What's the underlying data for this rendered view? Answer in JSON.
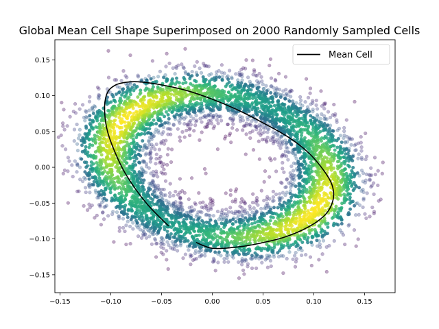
{
  "chart_data": {
    "type": "scatter",
    "title": "Global Mean Cell Shape Superimposed on 2000 Randomly Sampled Cells",
    "xlabel": "",
    "ylabel": "",
    "xlim": [
      -0.155,
      0.18
    ],
    "ylim": [
      -0.175,
      0.178
    ],
    "xticks": [
      -0.15,
      -0.1,
      -0.05,
      0.0,
      0.05,
      0.1,
      0.15
    ],
    "xtick_labels": [
      "−0.15",
      "−0.10",
      "−0.05",
      "0.00",
      "0.05",
      "0.10",
      "0.15"
    ],
    "yticks": [
      -0.15,
      -0.1,
      -0.05,
      0.0,
      0.05,
      0.1,
      0.15
    ],
    "ytick_labels": [
      "−0.15",
      "−0.10",
      "−0.05",
      "0.00",
      "0.05",
      "0.10",
      "0.15"
    ],
    "grid": false,
    "legend": {
      "position": "upper-right",
      "entries": [
        {
          "label": "Mean Cell",
          "color": "#000000"
        }
      ]
    },
    "series": [
      {
        "name": "Sampled Cells",
        "kind": "scatter-density",
        "colormap": "viridis",
        "point_alpha": 0.25,
        "description_points_per_cell": 100,
        "ring_center": [
          0.007,
          0.003
        ],
        "ring_semi_axes": [
          0.113,
          0.095
        ],
        "ring_rotation_deg": -34,
        "ring_band_sd": 0.021
      },
      {
        "name": "Mean Cell",
        "kind": "line",
        "color": "#000000",
        "x": [
          -0.043,
          -0.065,
          -0.085,
          -0.097,
          -0.104,
          -0.106,
          -0.103,
          -0.095,
          -0.083,
          -0.07,
          -0.05,
          -0.025,
          0.0,
          0.025,
          0.05,
          0.075,
          0.095,
          0.11,
          0.118,
          0.119,
          0.112,
          0.095,
          0.07,
          0.04,
          0.02,
          0.0,
          -0.016
        ],
        "y": [
          -0.082,
          -0.05,
          -0.01,
          0.025,
          0.055,
          0.085,
          0.105,
          0.115,
          0.119,
          0.119,
          0.115,
          0.107,
          0.095,
          0.08,
          0.062,
          0.042,
          0.02,
          -0.005,
          -0.025,
          -0.045,
          -0.065,
          -0.083,
          -0.098,
          -0.108,
          -0.112,
          -0.113,
          -0.105
        ]
      }
    ]
  }
}
